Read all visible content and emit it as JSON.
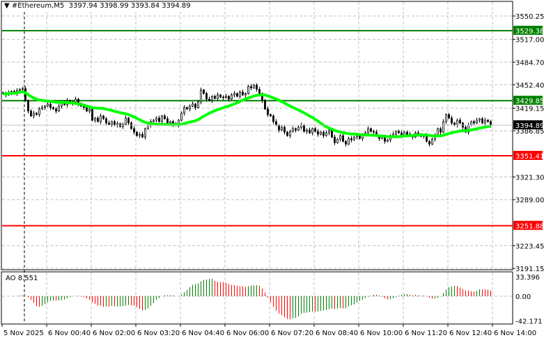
{
  "header": {
    "symbol": "#Ethereum,M5",
    "open": "3397.94",
    "high": "3398.99",
    "low": "3393.84",
    "close": "3394.89"
  },
  "indicator": {
    "name": "AO",
    "value": "8.551",
    "scale_max": "33.396",
    "scale_zero": "0.00",
    "scale_min": "-42.171"
  },
  "price_axis": {
    "ticks": [
      "3550.25",
      "3517.00",
      "3484.70",
      "3452.40",
      "3419.15",
      "3386.85",
      "3321.30",
      "3289.00",
      "3223.45",
      "3191.15"
    ]
  },
  "time_axis": {
    "labels": [
      "5 Nov 2025",
      "6 Nov 00:40",
      "6 Nov 02:00",
      "6 Nov 03:20",
      "6 Nov 04:40",
      "6 Nov 06:00",
      "6 Nov 07:20",
      "6 Nov 08:40",
      "6 Nov 10:00",
      "6 Nov 11:20",
      "6 Nov 12:40",
      "6 Nov 14:00"
    ]
  },
  "levels": [
    {
      "label": "3529.38",
      "price": 3529.38,
      "color": "#008000"
    },
    {
      "label": "3429.85",
      "price": 3429.85,
      "color": "#008000"
    },
    {
      "label": "3351.41",
      "price": 3351.41,
      "color": "#ff0000"
    },
    {
      "label": "3251.88",
      "price": 3251.88,
      "color": "#ff0000"
    }
  ],
  "current_price": {
    "label": "3394.89",
    "price": 3394.89
  },
  "colors": {
    "ma": "#00ff00",
    "ao_up": "#008000",
    "ao_down": "#ff0000",
    "grid": "#c0c0c0"
  },
  "chart_data": {
    "type": "candlestick",
    "timeframe": "M5",
    "first_bar": "5 Nov 23:20",
    "last_bar": "6 Nov 14:00",
    "ylim": [
      3191.15,
      3550.25
    ],
    "close": [
      3440,
      3438,
      3441,
      3443,
      3440,
      3444,
      3446,
      3447,
      3430,
      3415,
      3408,
      3412,
      3410,
      3418,
      3420,
      3422,
      3425,
      3420,
      3418,
      3415,
      3422,
      3428,
      3424,
      3430,
      3426,
      3428,
      3432,
      3425,
      3422,
      3420,
      3415,
      3418,
      3402,
      3405,
      3400,
      3408,
      3404,
      3398,
      3396,
      3400,
      3395,
      3397,
      3393,
      3396,
      3405,
      3398,
      3390,
      3385,
      3380,
      3382,
      3378,
      3390,
      3395,
      3400,
      3402,
      3405,
      3400,
      3408,
      3404,
      3398,
      3400,
      3396,
      3395,
      3402,
      3412,
      3420,
      3418,
      3422,
      3425,
      3420,
      3428,
      3445,
      3440,
      3432,
      3430,
      3436,
      3433,
      3438,
      3435,
      3434,
      3436,
      3432,
      3438,
      3440,
      3436,
      3442,
      3438,
      3440,
      3450,
      3448,
      3452,
      3446,
      3440,
      3430,
      3418,
      3410,
      3408,
      3400,
      3395,
      3388,
      3392,
      3385,
      3380,
      3386,
      3390,
      3388,
      3392,
      3395,
      3386,
      3388,
      3384,
      3390,
      3386,
      3382,
      3385,
      3380,
      3384,
      3388,
      3378,
      3370,
      3375,
      3380,
      3372,
      3368,
      3376,
      3374,
      3378,
      3380,
      3376,
      3382,
      3384,
      3390,
      3386,
      3385,
      3380,
      3376,
      3378,
      3372,
      3374,
      3380,
      3382,
      3386,
      3384,
      3380,
      3385,
      3382,
      3380,
      3378,
      3384,
      3382,
      3379,
      3380,
      3372,
      3368,
      3375,
      3380,
      3390,
      3385,
      3400,
      3410,
      3405,
      3398,
      3395,
      3402,
      3398,
      3392,
      3385,
      3395,
      3400,
      3398,
      3402,
      3404,
      3398,
      3402,
      3400,
      3394.89
    ]
  }
}
